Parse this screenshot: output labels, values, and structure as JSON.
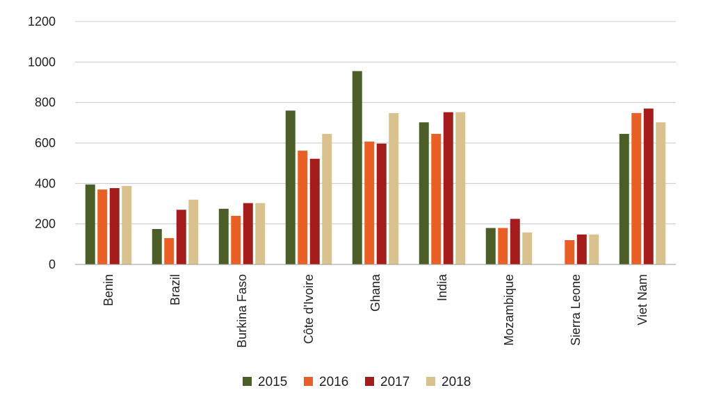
{
  "chart_data": {
    "type": "bar",
    "categories": [
      "Benin",
      "Brazil",
      "Burkina Faso",
      "Côte d'Ivoire",
      "Ghana",
      "India",
      "Mozambique",
      "Sierra Leone",
      "Viet Nam"
    ],
    "series": [
      {
        "name": "2015",
        "color": "#4b5e27",
        "values": [
          395,
          175,
          275,
          760,
          955,
          702,
          180,
          null,
          645
        ]
      },
      {
        "name": "2016",
        "color": "#e95f28",
        "values": [
          370,
          130,
          240,
          562,
          607,
          645,
          180,
          120,
          748
        ]
      },
      {
        "name": "2017",
        "color": "#a51c1c",
        "values": [
          377,
          270,
          303,
          522,
          597,
          752,
          225,
          148,
          770
        ]
      },
      {
        "name": "2018",
        "color": "#d9c28f",
        "values": [
          388,
          320,
          303,
          645,
          748,
          752,
          158,
          148,
          702
        ]
      }
    ],
    "yticks": [
      "0",
      "200",
      "400",
      "600",
      "800",
      "1000",
      "1200"
    ],
    "ylim": [
      0,
      1200
    ],
    "grid": true,
    "legend": "bottom-center"
  }
}
